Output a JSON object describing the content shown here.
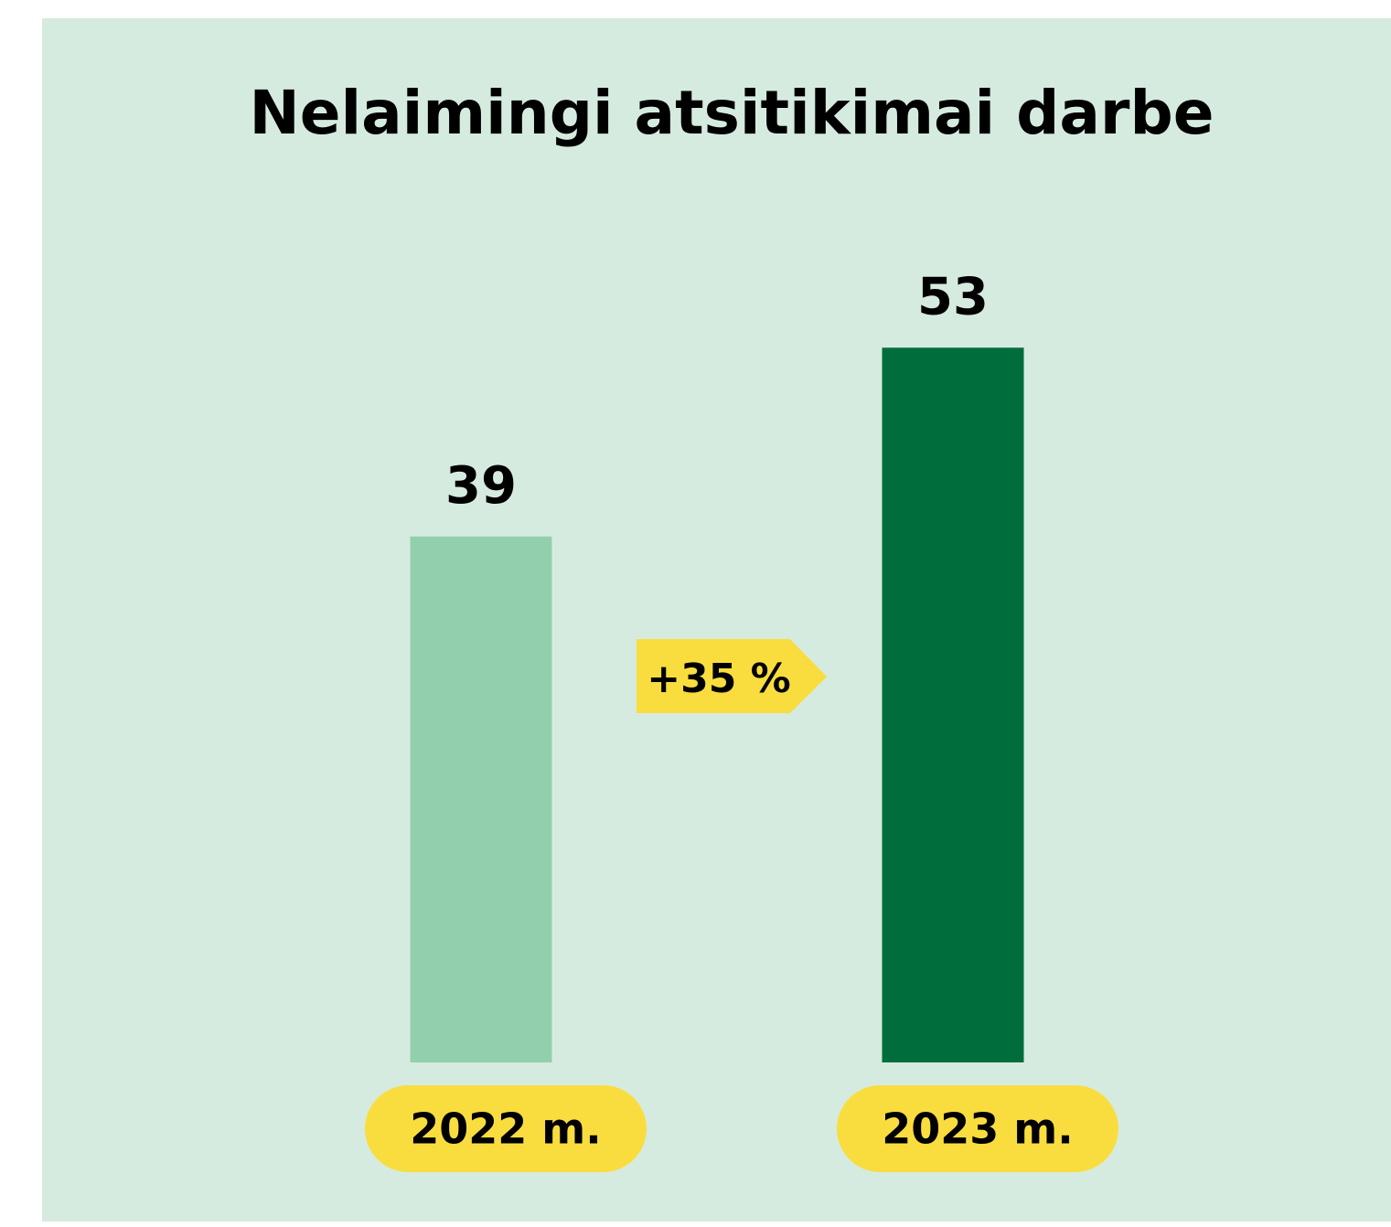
{
  "chart_data": {
    "type": "bar",
    "title": "Nelaimingi atsitikimai darbe",
    "categories": [
      "2022 m.",
      "2023 m."
    ],
    "values": [
      39,
      53
    ],
    "colors": [
      "#92d0ad",
      "#006e3c"
    ],
    "annotation": "+35 %",
    "ylim": [
      0,
      60
    ]
  }
}
